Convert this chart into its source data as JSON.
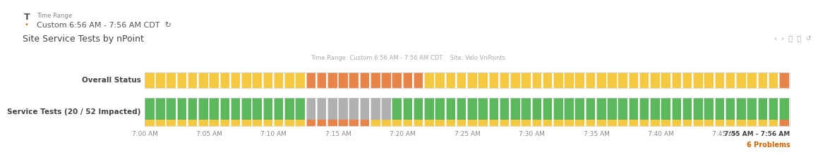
{
  "bg_top_color": "#f5f5f5",
  "bg_main_color": "#ffffff",
  "border_color": "#dddddd",
  "header_text1": "Time Range",
  "header_text2": "Custom 6:56 AM - 7:56 AM CDT",
  "header_icon_color": "#888888",
  "title": "Site Service Tests by nPoint",
  "subtitle": "Time Range: Custom 6:56 AM - 7:56 AM CDT    Site: Velo VnPoints",
  "nav_icons_color": "#aaaaaa",
  "row1_label": "Overall Status",
  "row2_label": "Service Tests (20 / 52 Impacted)",
  "time_labels": [
    "7:00 AM",
    "7:05 AM",
    "7:10 AM",
    "7:15 AM",
    "7:20 AM",
    "7:25 AM",
    "7:30 AM",
    "7:35 AM",
    "7:40 AM",
    "7:45 AM"
  ],
  "last_time_label": "7:55 AM - 7:56 AM",
  "problems_label": "6 Problems",
  "problems_color": "#cc6600",
  "n_segments": 60,
  "overall_colors_pattern": [
    "yellow",
    "yellow",
    "yellow",
    "yellow",
    "yellow",
    "yellow",
    "yellow",
    "yellow",
    "yellow",
    "yellow",
    "yellow",
    "yellow",
    "yellow",
    "yellow",
    "yellow",
    "orange",
    "orange",
    "orange",
    "orange",
    "orange",
    "orange",
    "orange",
    "orange",
    "orange",
    "orange",
    "orange",
    "yellow",
    "yellow",
    "yellow",
    "yellow",
    "yellow",
    "yellow",
    "yellow",
    "yellow",
    "yellow",
    "yellow",
    "yellow",
    "yellow",
    "yellow",
    "yellow",
    "yellow",
    "yellow",
    "yellow",
    "yellow",
    "yellow",
    "yellow",
    "yellow",
    "yellow",
    "yellow",
    "yellow",
    "yellow",
    "yellow",
    "yellow",
    "yellow",
    "yellow",
    "yellow",
    "yellow",
    "yellow",
    "yellow",
    "orange"
  ],
  "service_green_ratio": 0.75,
  "service_colors_top": [
    "green",
    "green",
    "green",
    "green",
    "green",
    "green",
    "green",
    "green",
    "green",
    "green",
    "green",
    "green",
    "green",
    "green",
    "green",
    "gray",
    "gray",
    "gray",
    "gray",
    "gray",
    "gray",
    "gray",
    "gray",
    "green",
    "green",
    "green",
    "green",
    "green",
    "green",
    "green",
    "green",
    "green",
    "green",
    "green",
    "green",
    "green",
    "green",
    "green",
    "green",
    "green",
    "green",
    "green",
    "green",
    "green",
    "green",
    "green",
    "green",
    "green",
    "green",
    "green",
    "green",
    "green",
    "green",
    "green",
    "green",
    "green",
    "green",
    "green",
    "green",
    "green"
  ],
  "service_colors_bottom": [
    "yellow",
    "yellow",
    "yellow",
    "yellow",
    "yellow",
    "yellow",
    "yellow",
    "yellow",
    "yellow",
    "yellow",
    "yellow",
    "yellow",
    "yellow",
    "yellow",
    "yellow",
    "orange",
    "orange",
    "orange",
    "orange",
    "orange",
    "orange",
    "yellow",
    "yellow",
    "yellow",
    "yellow",
    "yellow",
    "yellow",
    "yellow",
    "yellow",
    "yellow",
    "yellow",
    "yellow",
    "yellow",
    "yellow",
    "yellow",
    "yellow",
    "yellow",
    "yellow",
    "yellow",
    "yellow",
    "yellow",
    "yellow",
    "yellow",
    "yellow",
    "yellow",
    "yellow",
    "yellow",
    "yellow",
    "yellow",
    "yellow",
    "yellow",
    "yellow",
    "yellow",
    "yellow",
    "yellow",
    "yellow",
    "yellow",
    "yellow",
    "yellow",
    "orange"
  ],
  "color_map": {
    "yellow": "#f5c842",
    "orange": "#e8844a",
    "green": "#5cb85c",
    "gray": "#b0b0b0",
    "white": "#ffffff"
  },
  "label_color": "#444444",
  "label_fontsize": 7.5,
  "tick_fontsize": 6.5,
  "title_fontsize": 9,
  "subtitle_fontsize": 6,
  "header_fontsize1": 6,
  "header_fontsize2": 8
}
